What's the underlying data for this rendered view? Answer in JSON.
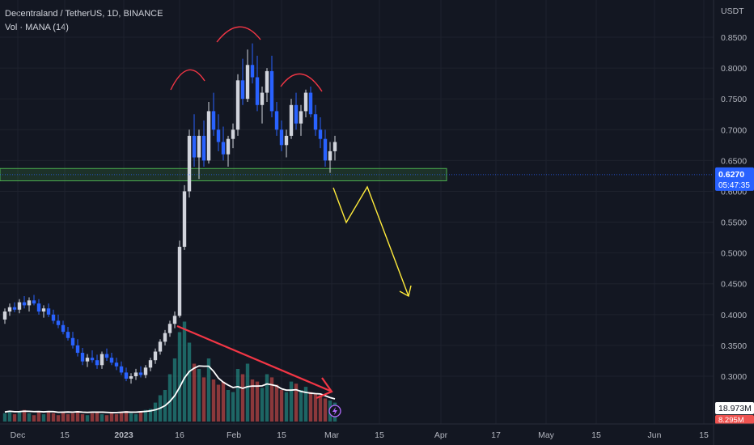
{
  "legend": {
    "symbol_line": "Decentraland / TetherUS, 1D, BINANCE",
    "volume_line": "Vol · MANA (14)"
  },
  "price_axis": {
    "currency": "USDT",
    "last_price": "0.6270",
    "countdown": "05:47:35",
    "volume_value": "18.973M",
    "volume_value_2": "8.295M"
  },
  "colors": {
    "background": "#131722",
    "up_candle": "#d1d4dc",
    "down_candle": "#2962ff",
    "up_volume": "#26a69a",
    "down_volume": "#ef5350",
    "support_zone": "#4caf50",
    "projection": "#ffeb3b",
    "arrow": "#f23645",
    "head_shoulders": "#f23645",
    "price_label": "#2962ff"
  },
  "chart_data": {
    "type": "candlestick",
    "title": "Decentraland / TetherUS, 1D, BINANCE",
    "y_axis_ticks": [
      "0.8500",
      "0.8000",
      "0.7500",
      "0.7000",
      "0.6500",
      "0.6000",
      "0.5500",
      "0.5000",
      "0.4500",
      "0.4000",
      "0.3500",
      "0.3000"
    ],
    "x_axis_ticks": [
      "Dec",
      "15",
      "2023",
      "16",
      "Feb",
      "15",
      "Mar",
      "15",
      "Apr",
      "17",
      "May",
      "15",
      "Jun",
      "15"
    ],
    "ylim": [
      0.25,
      0.885
    ],
    "last_price": 0.627,
    "support_zone": [
      0.617,
      0.637
    ],
    "pattern": "head-and-shoulders",
    "annotations": [
      "head-and-shoulders arcs",
      "support zone",
      "projected drop path",
      "volume divergence arrow"
    ],
    "projection_path": [
      {
        "date": "2023-03-01",
        "price": 0.612
      },
      {
        "date": "2023-03-05",
        "price": 0.554
      },
      {
        "date": "2023-03-11",
        "price": 0.612
      },
      {
        "date": "2023-03-24",
        "price": 0.43
      }
    ],
    "volume_trend_arrow": [
      {
        "date": "2023-01-13",
        "volume_share": 0.82
      },
      {
        "date": "2023-03-02",
        "volume_share": 0.28
      }
    ],
    "candles_ohlc": [
      [
        0.392,
        0.41,
        0.385,
        0.405
      ],
      [
        0.405,
        0.418,
        0.398,
        0.412
      ],
      [
        0.412,
        0.42,
        0.404,
        0.408
      ],
      [
        0.408,
        0.425,
        0.402,
        0.42
      ],
      [
        0.42,
        0.43,
        0.41,
        0.415
      ],
      [
        0.415,
        0.428,
        0.405,
        0.423
      ],
      [
        0.423,
        0.432,
        0.415,
        0.418
      ],
      [
        0.418,
        0.425,
        0.4,
        0.405
      ],
      [
        0.405,
        0.415,
        0.395,
        0.41
      ],
      [
        0.41,
        0.418,
        0.396,
        0.4
      ],
      [
        0.4,
        0.408,
        0.385,
        0.39
      ],
      [
        0.39,
        0.4,
        0.378,
        0.383
      ],
      [
        0.383,
        0.39,
        0.368,
        0.372
      ],
      [
        0.372,
        0.38,
        0.358,
        0.362
      ],
      [
        0.362,
        0.372,
        0.345,
        0.35
      ],
      [
        0.35,
        0.36,
        0.332,
        0.338
      ],
      [
        0.338,
        0.346,
        0.318,
        0.324
      ],
      [
        0.324,
        0.336,
        0.315,
        0.33
      ],
      [
        0.33,
        0.342,
        0.322,
        0.326
      ],
      [
        0.326,
        0.335,
        0.312,
        0.318
      ],
      [
        0.318,
        0.34,
        0.312,
        0.336
      ],
      [
        0.336,
        0.345,
        0.325,
        0.33
      ],
      [
        0.33,
        0.338,
        0.318,
        0.322
      ],
      [
        0.322,
        0.33,
        0.31,
        0.316
      ],
      [
        0.316,
        0.324,
        0.302,
        0.306
      ],
      [
        0.306,
        0.314,
        0.292,
        0.296
      ],
      [
        0.296,
        0.305,
        0.288,
        0.3
      ],
      [
        0.3,
        0.312,
        0.294,
        0.306
      ],
      [
        0.306,
        0.316,
        0.298,
        0.302
      ],
      [
        0.302,
        0.318,
        0.297,
        0.314
      ],
      [
        0.314,
        0.33,
        0.308,
        0.326
      ],
      [
        0.326,
        0.345,
        0.32,
        0.34
      ],
      [
        0.34,
        0.36,
        0.335,
        0.356
      ],
      [
        0.356,
        0.375,
        0.35,
        0.37
      ],
      [
        0.37,
        0.39,
        0.364,
        0.385
      ],
      [
        0.385,
        0.405,
        0.378,
        0.398
      ],
      [
        0.398,
        0.52,
        0.395,
        0.51
      ],
      [
        0.51,
        0.61,
        0.505,
        0.6
      ],
      [
        0.6,
        0.7,
        0.59,
        0.69
      ],
      [
        0.69,
        0.725,
        0.64,
        0.655
      ],
      [
        0.655,
        0.7,
        0.62,
        0.69
      ],
      [
        0.69,
        0.715,
        0.64,
        0.65
      ],
      [
        0.65,
        0.745,
        0.645,
        0.73
      ],
      [
        0.73,
        0.76,
        0.69,
        0.7
      ],
      [
        0.7,
        0.725,
        0.665,
        0.68
      ],
      [
        0.68,
        0.705,
        0.65,
        0.66
      ],
      [
        0.66,
        0.69,
        0.64,
        0.685
      ],
      [
        0.685,
        0.71,
        0.67,
        0.7
      ],
      [
        0.7,
        0.79,
        0.69,
        0.78
      ],
      [
        0.78,
        0.815,
        0.74,
        0.75
      ],
      [
        0.75,
        0.83,
        0.745,
        0.805
      ],
      [
        0.805,
        0.84,
        0.775,
        0.785
      ],
      [
        0.785,
        0.82,
        0.73,
        0.74
      ],
      [
        0.74,
        0.77,
        0.71,
        0.76
      ],
      [
        0.76,
        0.8,
        0.745,
        0.795
      ],
      [
        0.795,
        0.82,
        0.72,
        0.73
      ],
      [
        0.73,
        0.745,
        0.69,
        0.7
      ],
      [
        0.7,
        0.715,
        0.665,
        0.675
      ],
      [
        0.675,
        0.7,
        0.655,
        0.69
      ],
      [
        0.69,
        0.75,
        0.685,
        0.74
      ],
      [
        0.74,
        0.76,
        0.7,
        0.71
      ],
      [
        0.71,
        0.74,
        0.69,
        0.73
      ],
      [
        0.73,
        0.765,
        0.72,
        0.76
      ],
      [
        0.76,
        0.77,
        0.72,
        0.725
      ],
      [
        0.725,
        0.74,
        0.69,
        0.7
      ],
      [
        0.7,
        0.72,
        0.67,
        0.685
      ],
      [
        0.685,
        0.7,
        0.64,
        0.65
      ],
      [
        0.65,
        0.68,
        0.63,
        0.665
      ],
      [
        0.665,
        0.69,
        0.65,
        0.68
      ]
    ],
    "volume_share": [
      0.08,
      0.1,
      0.07,
      0.09,
      0.11,
      0.08,
      0.06,
      0.09,
      0.07,
      0.1,
      0.08,
      0.06,
      0.09,
      0.07,
      0.08,
      0.1,
      0.07,
      0.06,
      0.08,
      0.09,
      0.07,
      0.06,
      0.08,
      0.07,
      0.09,
      0.1,
      0.08,
      0.07,
      0.09,
      0.11,
      0.12,
      0.18,
      0.25,
      0.3,
      0.45,
      0.6,
      0.85,
      0.95,
      0.75,
      0.55,
      0.5,
      0.42,
      0.6,
      0.4,
      0.35,
      0.38,
      0.3,
      0.28,
      0.5,
      0.45,
      0.55,
      0.4,
      0.38,
      0.32,
      0.45,
      0.42,
      0.35,
      0.3,
      0.28,
      0.38,
      0.36,
      0.3,
      0.33,
      0.28,
      0.26,
      0.25,
      0.22,
      0.2,
      0.18
    ]
  }
}
